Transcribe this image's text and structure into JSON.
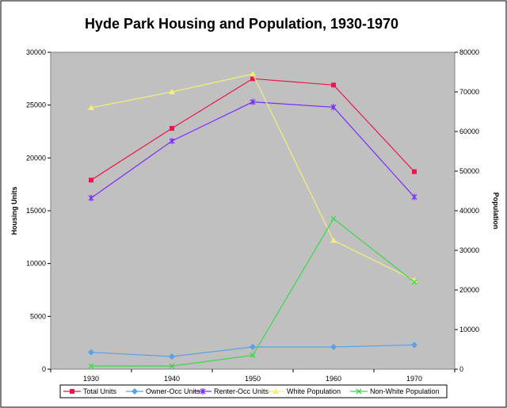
{
  "chart_data": {
    "type": "line",
    "title": "Hyde Park Housing and Population, 1930-1970",
    "x": [
      "1930",
      "1940",
      "1950",
      "1960",
      "1970"
    ],
    "left_axis": {
      "label": "Housing Units",
      "ylim": [
        0,
        30000
      ],
      "ticks": [
        "0",
        "5000",
        "10000",
        "15000",
        "20000",
        "25000",
        "30000"
      ]
    },
    "right_axis": {
      "label": "Population",
      "ylim": [
        0,
        80000
      ],
      "ticks": [
        "0",
        "10000",
        "20000",
        "30000",
        "40000",
        "50000",
        "60000",
        "70000",
        "80000"
      ]
    },
    "grid": false,
    "plot_background": "#c0c0c0",
    "legend_position": "bottom",
    "series": [
      {
        "name": "Total Units",
        "axis": "left",
        "color": "#e8174f",
        "marker": "square",
        "values": [
          17900,
          22800,
          27500,
          26900,
          18700
        ]
      },
      {
        "name": "Owner-Occ Units",
        "axis": "left",
        "color": "#5aa0e6",
        "marker": "diamond",
        "values": [
          1600,
          1200,
          2100,
          2100,
          2300
        ]
      },
      {
        "name": "Renter-Occ Units",
        "axis": "left",
        "color": "#7a2bff",
        "marker": "asterisk",
        "values": [
          16200,
          21600,
          25300,
          24800,
          16300
        ]
      },
      {
        "name": "White Population",
        "axis": "right",
        "color": "#f2ef7a",
        "marker": "triangle",
        "values": [
          66000,
          70000,
          74500,
          32500,
          22500
        ]
      },
      {
        "name": "Non-White Population",
        "axis": "right",
        "color": "#3ad84a",
        "marker": "x",
        "values": [
          800,
          800,
          3500,
          38000,
          22000
        ]
      }
    ]
  }
}
